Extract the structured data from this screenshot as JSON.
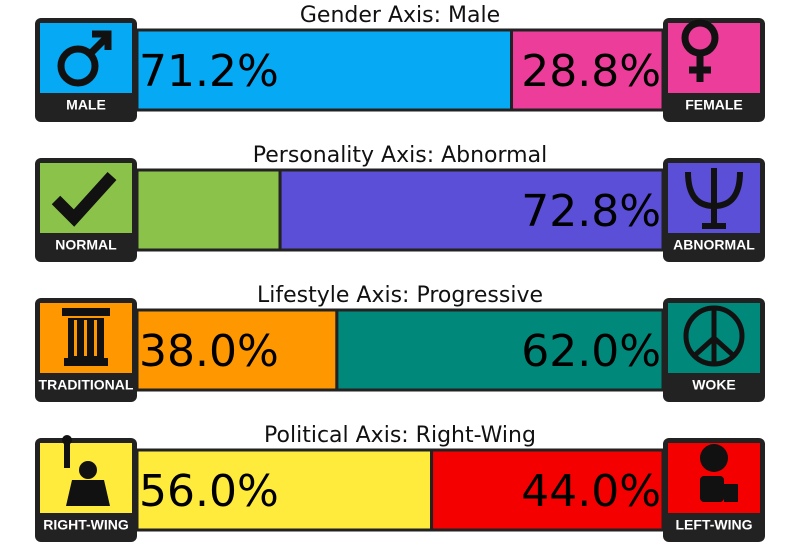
{
  "axes": [
    {
      "title": "Gender Axis: Male",
      "left": {
        "label": "MALE",
        "value": 71.2,
        "value_label": "71.2%",
        "color": "#05a9f4"
      },
      "right": {
        "label": "FEMALE",
        "value": 28.8,
        "value_label": "28.8%",
        "color": "#ec3d9b"
      }
    },
    {
      "title": "Personality Axis: Abnormal",
      "left": {
        "label": "NORMAL",
        "value": 27.2,
        "color": "#8bc34a"
      },
      "right": {
        "label": "ABNORMAL",
        "value": 72.8,
        "value_label": "72.8%",
        "color": "#5a4fd6"
      }
    },
    {
      "title": "Lifestyle Axis: Progressive",
      "left": {
        "label": "TRADITIONAL",
        "value": 38.0,
        "value_label": "38.0%",
        "color": "#ff9800"
      },
      "right": {
        "label": "WOKE",
        "value": 62.0,
        "value_label": "62.0%",
        "color": "#00897b"
      }
    },
    {
      "title": "Political Axis: Right-Wing",
      "left": {
        "label": "RIGHT-WING",
        "value": 56.0,
        "value_label": "56.0%",
        "color": "#ffeb3b"
      },
      "right": {
        "label": "LEFT-WING",
        "value": 44.0,
        "value_label": "44.0%",
        "color": "#f40000"
      }
    }
  ]
}
